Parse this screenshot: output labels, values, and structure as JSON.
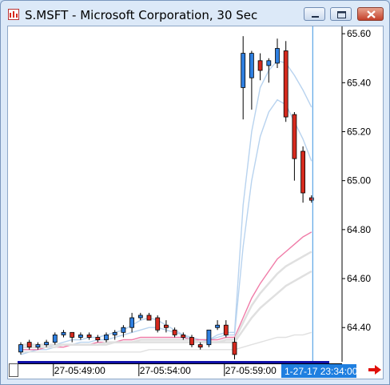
{
  "window": {
    "title": "S.MSFT - Microsoft Corporation, 30 Sec",
    "icons": {
      "app": "chart-app-icon",
      "minimize": "minimize-icon",
      "maximize": "maximize-icon",
      "close": "close-icon",
      "scroll_right": "red-arrow-right-icon"
    }
  },
  "colors": {
    "up_candle": "#2f7fe0",
    "down_candle": "#d62a1e",
    "time_scrollbar": "#1010a8",
    "cursor_line": "#3a93e0",
    "cursor_label_bg": "#1f7fe0",
    "ma_blue": "#b8d3ef",
    "ma_pink": "#f07ca8",
    "ma_gray": "#e0e0e0"
  },
  "chart_data": {
    "type": "candlestick",
    "title": "S.MSFT - Microsoft Corporation, 30 Sec",
    "y_axis": {
      "position": "right",
      "ylim": [
        64.27,
        65.62
      ],
      "ticks": [
        "65.60",
        "65.40",
        "65.20",
        "65.00",
        "64.80",
        "64.60",
        "64.40"
      ]
    },
    "x_axis": {
      "labels": [
        {
          "text": "27-05:49:00",
          "index": 4
        },
        {
          "text": "27-05:54:00",
          "index": 14
        },
        {
          "text": "27-05:59:00",
          "index": 24
        }
      ],
      "cursor_label": "1-27-17 23:34:00"
    },
    "grid": false,
    "candles": [
      {
        "o": 64.3,
        "h": 64.34,
        "l": 64.29,
        "c": 64.33
      },
      {
        "o": 64.34,
        "h": 64.35,
        "l": 64.31,
        "c": 64.32
      },
      {
        "o": 64.32,
        "h": 64.34,
        "l": 64.31,
        "c": 64.33
      },
      {
        "o": 64.33,
        "h": 64.35,
        "l": 64.32,
        "c": 64.34
      },
      {
        "o": 64.34,
        "h": 64.38,
        "l": 64.33,
        "c": 64.37
      },
      {
        "o": 64.37,
        "h": 64.39,
        "l": 64.36,
        "c": 64.38
      },
      {
        "o": 64.38,
        "h": 64.37,
        "l": 64.34,
        "c": 64.36
      },
      {
        "o": 64.36,
        "h": 64.38,
        "l": 64.35,
        "c": 64.37
      },
      {
        "o": 64.37,
        "h": 64.38,
        "l": 64.35,
        "c": 64.36
      },
      {
        "o": 64.36,
        "h": 64.37,
        "l": 64.34,
        "c": 64.35
      },
      {
        "o": 64.35,
        "h": 64.38,
        "l": 64.34,
        "c": 64.37
      },
      {
        "o": 64.37,
        "h": 64.39,
        "l": 64.35,
        "c": 64.38
      },
      {
        "o": 64.38,
        "h": 64.41,
        "l": 64.36,
        "c": 64.4
      },
      {
        "o": 64.4,
        "h": 64.46,
        "l": 64.38,
        "c": 64.44
      },
      {
        "o": 64.44,
        "h": 64.46,
        "l": 64.43,
        "c": 64.45
      },
      {
        "o": 64.45,
        "h": 64.46,
        "l": 64.44,
        "c": 64.43
      },
      {
        "o": 64.44,
        "h": 64.45,
        "l": 64.38,
        "c": 64.39
      },
      {
        "o": 64.41,
        "h": 64.43,
        "l": 64.38,
        "c": 64.4
      },
      {
        "o": 64.39,
        "h": 64.4,
        "l": 64.36,
        "c": 64.37
      },
      {
        "o": 64.37,
        "h": 64.38,
        "l": 64.35,
        "c": 64.36
      },
      {
        "o": 64.36,
        "h": 64.37,
        "l": 64.32,
        "c": 64.33
      },
      {
        "o": 64.33,
        "h": 64.34,
        "l": 64.31,
        "c": 64.32
      },
      {
        "o": 64.33,
        "h": 64.39,
        "l": 64.32,
        "c": 64.39
      },
      {
        "o": 64.4,
        "h": 64.43,
        "l": 64.39,
        "c": 64.41
      },
      {
        "o": 64.41,
        "h": 64.43,
        "l": 64.36,
        "c": 64.37
      },
      {
        "o": 64.34,
        "h": 64.36,
        "l": 64.27,
        "c": 64.29
      },
      {
        "o": 65.38,
        "h": 65.59,
        "l": 65.25,
        "c": 65.52
      },
      {
        "o": 65.42,
        "h": 65.53,
        "l": 65.29,
        "c": 65.52
      },
      {
        "o": 65.49,
        "h": 65.52,
        "l": 65.41,
        "c": 65.45
      },
      {
        "o": 65.47,
        "h": 65.5,
        "l": 65.4,
        "c": 65.49
      },
      {
        "o": 65.48,
        "h": 65.58,
        "l": 65.46,
        "c": 65.54
      },
      {
        "o": 65.53,
        "h": 65.57,
        "l": 65.24,
        "c": 65.26
      },
      {
        "o": 65.27,
        "h": 65.28,
        "l": 65.0,
        "c": 65.09
      },
      {
        "o": 65.12,
        "h": 65.14,
        "l": 64.91,
        "c": 64.95
      },
      {
        "o": 64.93,
        "h": 64.94,
        "l": 64.91,
        "c": 64.92
      }
    ],
    "moving_averages": [
      {
        "color": "ma_blue",
        "values": [
          64.29,
          64.3,
          64.31,
          64.32,
          64.33,
          64.34,
          64.35,
          64.35,
          64.36,
          64.36,
          64.37,
          64.38,
          64.39,
          64.41,
          64.43,
          64.44,
          64.43,
          64.41,
          64.39,
          64.37,
          64.35,
          64.34,
          64.35,
          64.37,
          64.38,
          64.38,
          64.9,
          65.2,
          65.38,
          65.45,
          65.49,
          65.48,
          65.43,
          65.37,
          65.3
        ]
      },
      {
        "color": "ma_blue",
        "values": [
          64.3,
          64.3,
          64.31,
          64.31,
          64.32,
          64.33,
          64.33,
          64.34,
          64.34,
          64.35,
          64.35,
          64.36,
          64.37,
          64.38,
          64.39,
          64.4,
          64.4,
          64.39,
          64.38,
          64.37,
          64.36,
          64.35,
          64.35,
          64.36,
          64.37,
          64.37,
          64.73,
          65.0,
          65.18,
          65.28,
          65.33,
          65.31,
          65.24,
          65.17,
          65.08
        ]
      },
      {
        "color": "ma_pink",
        "values": [
          64.31,
          64.31,
          64.31,
          64.32,
          64.32,
          64.32,
          64.33,
          64.33,
          64.33,
          64.34,
          64.34,
          64.34,
          64.35,
          64.35,
          64.36,
          64.36,
          64.36,
          64.36,
          64.36,
          64.36,
          64.35,
          64.35,
          64.35,
          64.35,
          64.36,
          64.36,
          64.44,
          64.52,
          64.58,
          64.63,
          64.68,
          64.71,
          64.74,
          64.77,
          64.79
        ]
      },
      {
        "color": "ma_gray",
        "values": [
          64.32,
          64.32,
          64.32,
          64.32,
          64.32,
          64.33,
          64.33,
          64.33,
          64.33,
          64.33,
          64.34,
          64.34,
          64.34,
          64.34,
          64.35,
          64.35,
          64.35,
          64.35,
          64.35,
          64.35,
          64.35,
          64.34,
          64.34,
          64.34,
          64.35,
          64.35,
          64.42,
          64.49,
          64.54,
          64.58,
          64.62,
          64.65,
          64.67,
          64.69,
          64.71
        ]
      },
      {
        "color": "ma_gray",
        "values": [
          64.33,
          64.33,
          64.33,
          64.33,
          64.33,
          64.33,
          64.33,
          64.33,
          64.33,
          64.33,
          64.33,
          64.34,
          64.34,
          64.34,
          64.34,
          64.34,
          64.34,
          64.34,
          64.34,
          64.34,
          64.34,
          64.34,
          64.34,
          64.34,
          64.34,
          64.34,
          64.39,
          64.44,
          64.48,
          64.51,
          64.54,
          64.57,
          64.59,
          64.61,
          64.63
        ]
      },
      {
        "color": "ma_gray",
        "values": [
          64.3,
          64.3,
          64.3,
          64.3,
          64.3,
          64.3,
          64.3,
          64.3,
          64.3,
          64.3,
          64.3,
          64.3,
          64.3,
          64.3,
          64.3,
          64.31,
          64.31,
          64.31,
          64.31,
          64.31,
          64.31,
          64.31,
          64.31,
          64.31,
          64.31,
          64.31,
          64.32,
          64.33,
          64.34,
          64.35,
          64.36,
          64.36,
          64.37,
          64.37,
          64.38
        ]
      }
    ]
  }
}
